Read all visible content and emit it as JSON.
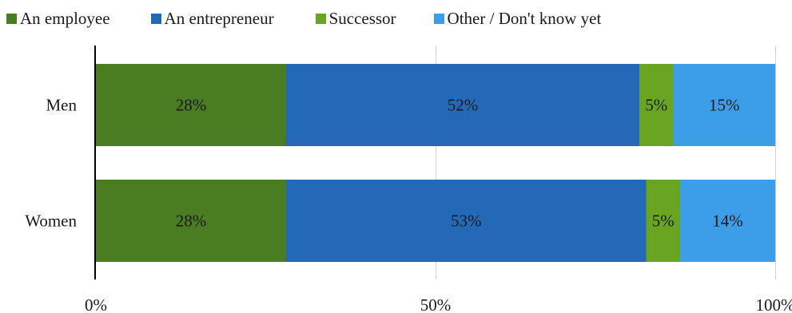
{
  "chart_data": {
    "type": "bar",
    "orientation": "horizontal",
    "stacked": true,
    "title": "",
    "xlabel": "",
    "ylabel": "",
    "xlim": [
      0,
      100
    ],
    "x_ticks": [
      "0%",
      "50%",
      "100%"
    ],
    "x_tick_values": [
      0,
      50,
      100
    ],
    "grid": true,
    "legend_position": "top",
    "categories": [
      "Men",
      "Women"
    ],
    "series": [
      {
        "name": "An employee",
        "color": "#4a7d22",
        "values": [
          28,
          28
        ],
        "labels": [
          "28%",
          "28%"
        ]
      },
      {
        "name": "An entrepreneur",
        "color": "#2468b8",
        "values": [
          52,
          53
        ],
        "labels": [
          "52%",
          "53%"
        ]
      },
      {
        "name": "Successor",
        "color": "#6aa521",
        "values": [
          5,
          5
        ],
        "labels": [
          "5%",
          "5%"
        ]
      },
      {
        "name": "Other / Don't know yet",
        "color": "#3c9ee8",
        "values": [
          15,
          14
        ],
        "labels": [
          "15%",
          "14%"
        ]
      }
    ]
  }
}
